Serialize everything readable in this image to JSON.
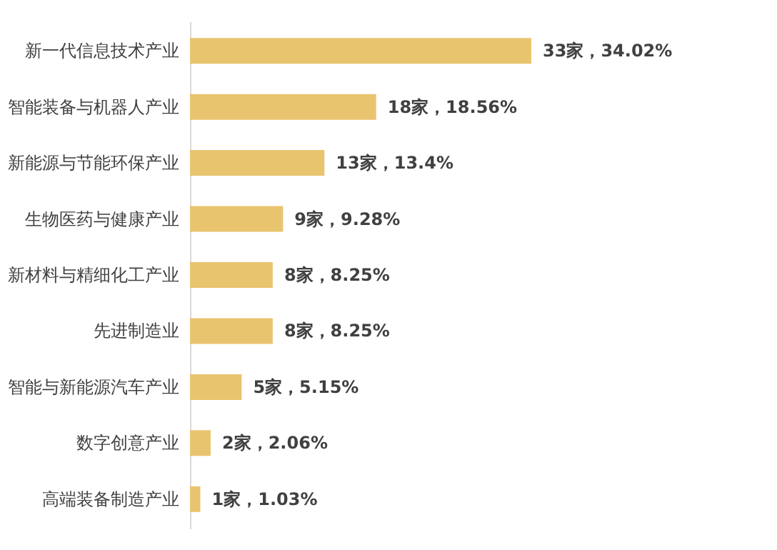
{
  "chart_data": {
    "type": "bar",
    "orientation": "horizontal",
    "categories": [
      "新一代信息技术产业",
      "智能装备与机器人产业",
      "新能源与节能环保产业",
      "生物医药与健康产业",
      "新材料与精细化工产业",
      "先进制造业",
      "智能与新能源汽车产业",
      "数字创意产业",
      "高端装备制造产业"
    ],
    "values": [
      33,
      18,
      13,
      9,
      8,
      8,
      5,
      2,
      1
    ],
    "value_labels": [
      "33家，34.02%",
      "18家，18.56%",
      "13家，13.4%",
      "9家，9.28%",
      "8家，8.25%",
      "8家，8.25%",
      "5家，5.15%",
      "2家，2.06%",
      "1家，1.03%"
    ],
    "color": "#e9c46f",
    "tick_labels": "y"
  }
}
